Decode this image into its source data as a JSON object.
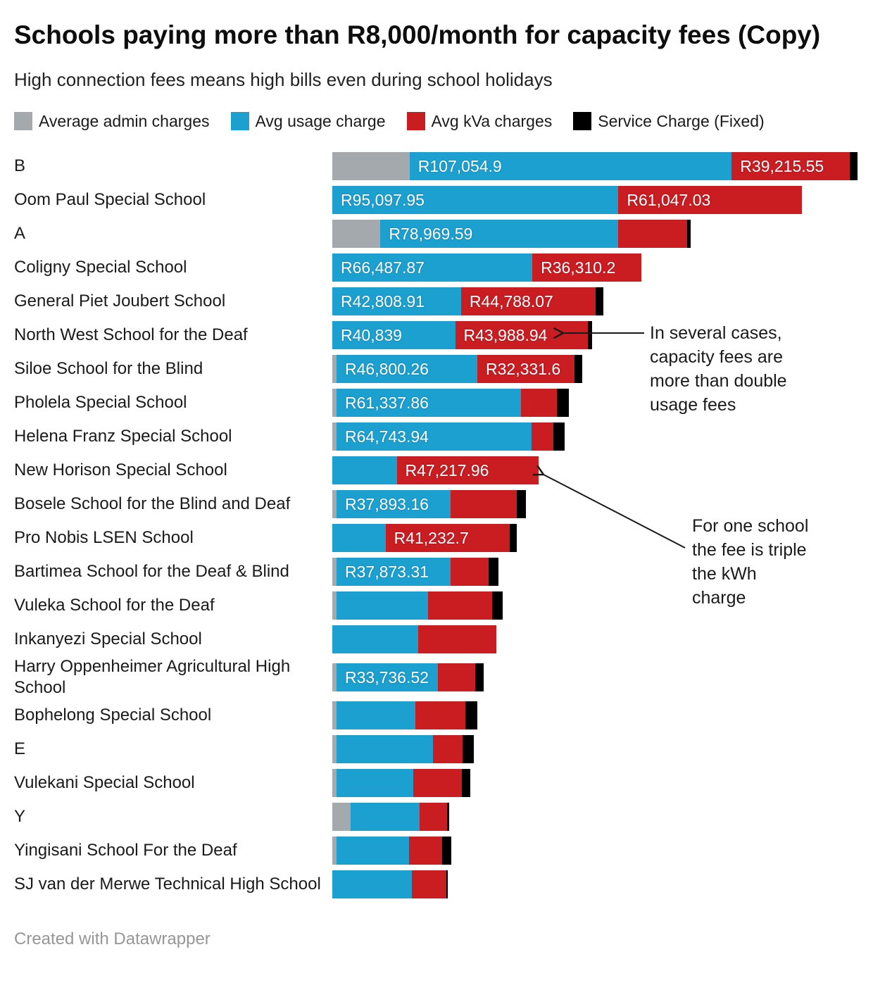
{
  "header": {
    "title": "Schools paying more than R8,000/month for capacity fees (Copy)",
    "subtitle": "High connection fees means high bills even during school holidays"
  },
  "legend": {
    "items": [
      {
        "label": "Average admin charges",
        "color": "#a3a9ac"
      },
      {
        "label": "Avg usage charge",
        "color": "#1ca0d0"
      },
      {
        "label": "Avg kVa charges",
        "color": "#c91d22"
      },
      {
        "label": "Service Charge (Fixed)",
        "color": "#000000"
      }
    ]
  },
  "chart_data": {
    "type": "bar",
    "orientation": "horizontal",
    "stacked": true,
    "grid": false,
    "axis_visible": false,
    "x_min": 0,
    "x_max": 175000,
    "unit": "South African Rand (R)",
    "title": "Schools paying more than R8,000/month for capacity fees (Copy)",
    "subtitle": "High connection fees means high bills even during school holidays",
    "categories": [
      "B",
      "Oom Paul Special School",
      "A",
      "Coligny Special School",
      "General Piet Joubert School",
      "North West School for the Deaf",
      "Siloe School for the Blind",
      "Pholela Special School",
      "Helena Franz Special School",
      "New Horison Special School",
      "Bosele School for the Blind and Deaf",
      "Pro Nobis LSEN School",
      "Bartimea School for the Deaf & Blind",
      "Vuleka School for the Deaf",
      "Inkanyezi Special School",
      "Harry Oppenheimer Agricultural High School",
      "Bophelong Special School",
      "E",
      "Vulekani Special School",
      "Y",
      "Yingisani School For the Deaf",
      "SJ van der Merwe Technical High School"
    ],
    "series": [
      {
        "key": "admin",
        "name": "Average admin charges",
        "color": "#a3a9ac",
        "values": [
          25700,
          0,
          16000,
          0,
          0,
          0,
          1400,
          1400,
          1400,
          0,
          1400,
          0,
          1400,
          1400,
          0,
          1400,
          1400,
          1400,
          1400,
          6100,
          1400,
          0
        ],
        "labels": [
          null,
          null,
          null,
          null,
          null,
          null,
          null,
          null,
          null,
          null,
          null,
          null,
          null,
          null,
          null,
          null,
          null,
          null,
          null,
          null,
          null,
          null
        ]
      },
      {
        "key": "usage",
        "name": "Avg usage charge",
        "color": "#1ca0d0",
        "values": [
          107054.9,
          95097.95,
          78969.59,
          66487.87,
          42808.91,
          40839,
          46800.26,
          61337.86,
          64743.94,
          21400,
          37893.16,
          17700,
          37873.31,
          30400,
          28500,
          33736.52,
          26200,
          32000,
          25500,
          22900,
          24100,
          26400
        ],
        "labels": [
          "R107,054.9",
          "R95,097.95",
          "R78,969.59",
          "R66,487.87",
          "R42,808.91",
          "R40,839",
          "R46,800.26",
          "R61,337.86",
          "R64,743.94",
          null,
          "R37,893.16",
          null,
          "R37,873.31",
          null,
          null,
          "R33,736.52",
          null,
          null,
          null,
          null,
          null,
          null
        ]
      },
      {
        "key": "kva",
        "name": "Avg kVa charges",
        "color": "#c91d22",
        "values": [
          39215.55,
          61047.03,
          23000,
          36310.2,
          44788.07,
          43988.94,
          32331.6,
          12000,
          7300,
          47217.96,
          22000,
          41232.7,
          12600,
          21300,
          26000,
          12400,
          16600,
          10000,
          16100,
          9100,
          11000,
          11500
        ],
        "labels": [
          "R39,215.55",
          "R61,047.03",
          null,
          "R36,310.2",
          "R44,788.07",
          "R43,988.94",
          "R32,331.6",
          null,
          null,
          "R47,217.96",
          null,
          "R41,232.7",
          null,
          null,
          null,
          null,
          null,
          null,
          null,
          null,
          null,
          null
        ]
      },
      {
        "key": "service",
        "name": "Service Charge (Fixed)",
        "color": "#000000",
        "values": [
          2500,
          0,
          1200,
          0,
          2400,
          1600,
          2600,
          3900,
          3800,
          0,
          3000,
          2300,
          3300,
          3500,
          0,
          2800,
          4000,
          3700,
          2800,
          700,
          3000,
          500
        ],
        "labels": [
          null,
          null,
          null,
          null,
          null,
          null,
          null,
          null,
          null,
          null,
          null,
          null,
          null,
          null,
          null,
          null,
          null,
          null,
          null,
          null,
          null,
          null
        ]
      }
    ],
    "annotations": [
      {
        "text": "In several cases, capacity fees are more than double usage fees",
        "target": "North West School for the Deaf"
      },
      {
        "text": "For one school the fee is triple the kWh charge",
        "target": "New Horison Special School"
      }
    ]
  },
  "footer": {
    "credit": "Created with Datawrapper"
  }
}
